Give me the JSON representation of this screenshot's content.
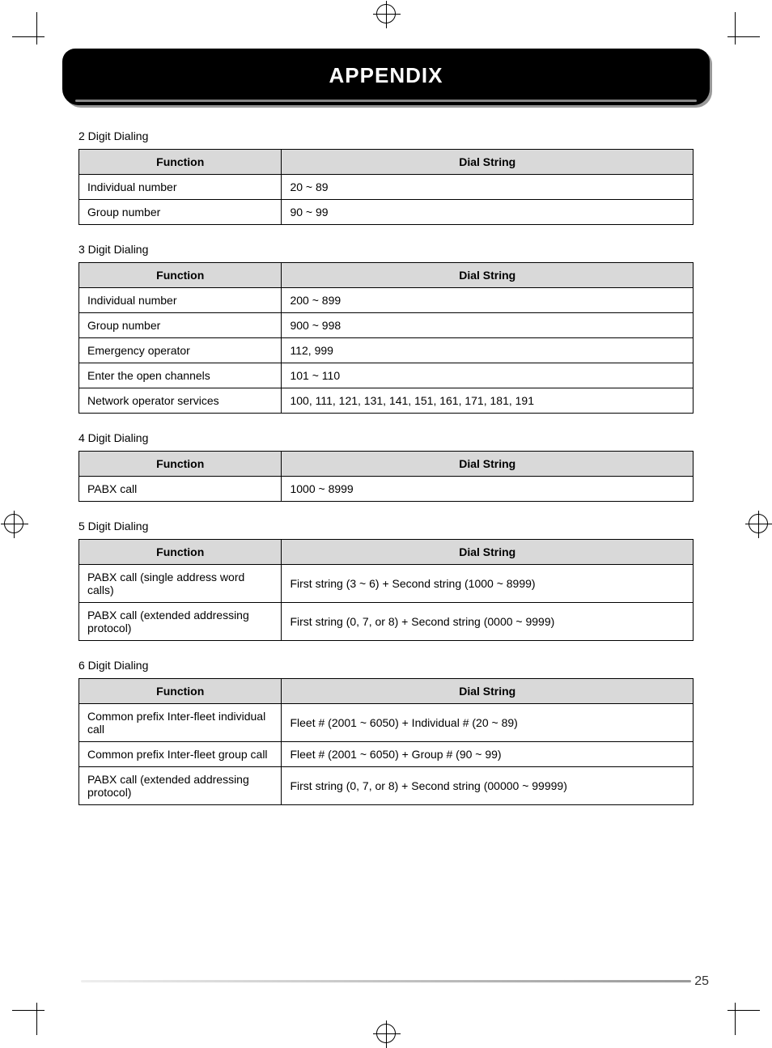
{
  "page": {
    "title": "APPENDIX",
    "number": "25"
  },
  "sections": [
    {
      "label": "2 Digit Dialing",
      "headers": [
        "Function",
        "Dial String"
      ],
      "rows": [
        [
          "Individual number",
          "20 ~ 89"
        ],
        [
          "Group number",
          "90 ~ 99"
        ]
      ]
    },
    {
      "label": "3 Digit Dialing",
      "headers": [
        "Function",
        "Dial String"
      ],
      "rows": [
        [
          "Individual number",
          "200 ~ 899"
        ],
        [
          "Group number",
          "900 ~ 998"
        ],
        [
          "Emergency operator",
          "112, 999"
        ],
        [
          "Enter the open channels",
          "101 ~ 110"
        ],
        [
          "Network operator services",
          "100, 111, 121, 131, 141, 151, 161, 171, 181, 191"
        ]
      ]
    },
    {
      "label": "4 Digit Dialing",
      "headers": [
        "Function",
        "Dial String"
      ],
      "rows": [
        [
          "PABX call",
          "1000 ~ 8999"
        ]
      ]
    },
    {
      "label": "5 Digit Dialing",
      "headers": [
        "Function",
        "Dial String"
      ],
      "rows": [
        [
          "PABX call (single address word calls)",
          "First string (3 ~ 6) + Second string (1000 ~ 8999)"
        ],
        [
          "PABX call (extended addressing protocol)",
          "First string (0, 7, or 8) + Second string (0000 ~ 9999)"
        ]
      ]
    },
    {
      "label": "6 Digit Dialing",
      "headers": [
        "Function",
        "Dial String"
      ],
      "rows": [
        [
          "Common prefix Inter-fleet individual call",
          "Fleet # (2001 ~ 6050) + Individual # (20 ~ 89)"
        ],
        [
          "Common prefix Inter-fleet group call",
          "Fleet # (2001 ~ 6050) + Group # (90 ~ 99)"
        ],
        [
          "PABX call (extended addressing protocol)",
          "First string (0, 7, or 8) + Second string (00000 ~ 99999)"
        ]
      ]
    }
  ]
}
